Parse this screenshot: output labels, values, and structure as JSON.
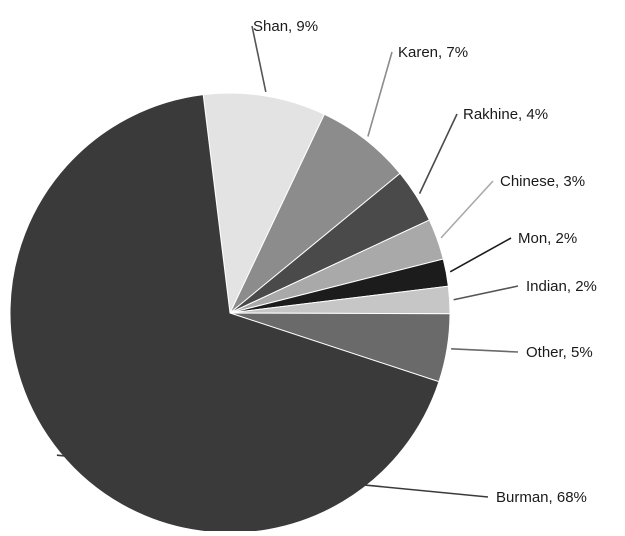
{
  "chart_data": {
    "type": "pie",
    "title": "",
    "start_angle_deg": -97,
    "direction": "clockwise",
    "legend": "none",
    "slices": [
      {
        "label": "Shan, 9%",
        "name": "Shan",
        "value": 9,
        "color": "#e3e3e3"
      },
      {
        "label": "Karen, 7%",
        "name": "Karen",
        "value": 7,
        "color": "#8c8c8c"
      },
      {
        "label": "Rakhine, 4%",
        "name": "Rakhine",
        "value": 4,
        "color": "#4a4a4a"
      },
      {
        "label": "Chinese, 3%",
        "name": "Chinese",
        "value": 3,
        "color": "#a9a9a9"
      },
      {
        "label": "Mon, 2%",
        "name": "Mon",
        "value": 2,
        "color": "#1c1c1c"
      },
      {
        "label": "Indian, 2%",
        "name": "Indian",
        "value": 2,
        "color": "#c6c6c6"
      },
      {
        "label": "Other, 5%",
        "name": "Other, 5%",
        "value": 5,
        "color": "#6a6a6a"
      },
      {
        "label": "Burman, 68%",
        "name": "Burman",
        "value": 68,
        "color": "#3a3a3a"
      }
    ]
  }
}
